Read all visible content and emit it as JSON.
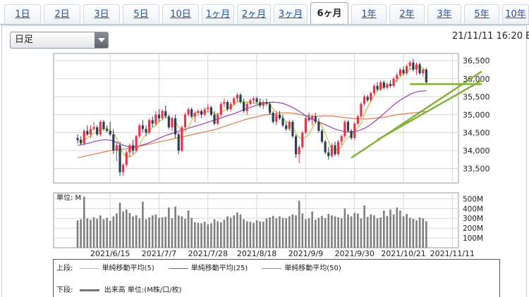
{
  "tabs": [
    {
      "label": "1日"
    },
    {
      "label": "2日"
    },
    {
      "label": "3日"
    },
    {
      "label": "5日"
    },
    {
      "label": "10日"
    },
    {
      "label": "1ヶ月"
    },
    {
      "label": "2ヶ月"
    },
    {
      "label": "3ヶ月"
    },
    {
      "label": "6ヶ月"
    },
    {
      "label": "1年"
    },
    {
      "label": "2年"
    },
    {
      "label": "3年"
    },
    {
      "label": "5年"
    },
    {
      "label": "10年"
    }
  ],
  "active_tab_index": 8,
  "select": {
    "value": "日足"
  },
  "timestamp": "21/11/11 16:20 E",
  "colors": {
    "up": "#e8334a",
    "down": "#2c3e50",
    "ma5": "#c6c33a",
    "ma25": "#9b3fb5",
    "ma50": "#e07a4a",
    "trend": "#84b13a",
    "volume": "#7f7f7f"
  },
  "chart_data": {
    "type": "candlestick",
    "price_axis": {
      "ticks": [
        33500,
        34000,
        34500,
        35000,
        35500,
        36000,
        36500
      ],
      "ylim": [
        33100,
        36700
      ]
    },
    "volume_axis": {
      "unit_label": "単位: M",
      "ticks": [
        "100M",
        "200M",
        "300M",
        "400M",
        "500M"
      ],
      "tick_values": [
        100,
        200,
        300,
        400,
        500
      ],
      "ylim": [
        0,
        560
      ]
    },
    "x_labels": [
      "2021/6/15",
      "2021/7/7",
      "2021/7/28",
      "2021/8/18",
      "2021/9/9",
      "2021/9/30",
      "2021/10/21",
      "2021/11/11"
    ],
    "x_label_indices": [
      10,
      25,
      40,
      55,
      70,
      85,
      100,
      115
    ],
    "ohlc": [
      [
        34350,
        34450,
        34200,
        34300
      ],
      [
        34300,
        34400,
        34150,
        34200
      ],
      [
        34200,
        34600,
        34150,
        34550
      ],
      [
        34550,
        34700,
        34400,
        34450
      ],
      [
        34450,
        34700,
        34350,
        34600
      ],
      [
        34600,
        34800,
        34550,
        34650
      ],
      [
        34650,
        34700,
        34400,
        34450
      ],
      [
        34450,
        34850,
        34400,
        34800
      ],
      [
        34800,
        34850,
        34550,
        34600
      ],
      [
        34600,
        34700,
        34500,
        34550
      ],
      [
        34550,
        34800,
        34400,
        34450
      ],
      [
        34450,
        34600,
        33900,
        34000
      ],
      [
        34000,
        34250,
        33700,
        34150
      ],
      [
        34150,
        34250,
        33300,
        33400
      ],
      [
        33400,
        33650,
        33300,
        33600
      ],
      [
        33600,
        34000,
        33550,
        33950
      ],
      [
        33950,
        34200,
        33800,
        34150
      ],
      [
        34150,
        34300,
        33900,
        34000
      ],
      [
        34000,
        34450,
        33950,
        34400
      ],
      [
        34400,
        34750,
        34350,
        34700
      ],
      [
        34700,
        34850,
        34500,
        34600
      ],
      [
        34600,
        34700,
        34400,
        34500
      ],
      [
        34500,
        34900,
        34450,
        34850
      ],
      [
        34850,
        34950,
        34650,
        34750
      ],
      [
        34750,
        35100,
        34700,
        35000
      ],
      [
        35000,
        35150,
        34800,
        34900
      ],
      [
        34900,
        35150,
        34850,
        35100
      ],
      [
        35100,
        35250,
        34900,
        34950
      ],
      [
        34950,
        35000,
        34600,
        34650
      ],
      [
        34650,
        34950,
        34550,
        34900
      ],
      [
        34900,
        35000,
        34350,
        34450
      ],
      [
        34450,
        34500,
        33900,
        34000
      ],
      [
        34000,
        34700,
        33950,
        34650
      ],
      [
        34650,
        35050,
        34600,
        35000
      ],
      [
        35000,
        35200,
        34950,
        35150
      ],
      [
        35150,
        35200,
        34900,
        34950
      ],
      [
        34950,
        35100,
        34800,
        35050
      ],
      [
        35050,
        35150,
        34950,
        35100
      ],
      [
        35100,
        35150,
        34900,
        35000
      ],
      [
        35000,
        35200,
        34950,
        35150
      ],
      [
        35150,
        35300,
        35050,
        35200
      ],
      [
        35200,
        35250,
        34950,
        35000
      ],
      [
        35000,
        35100,
        34700,
        34750
      ],
      [
        34750,
        35050,
        34700,
        35000
      ],
      [
        35000,
        35350,
        34950,
        35300
      ],
      [
        35300,
        35450,
        35200,
        35350
      ],
      [
        35350,
        35400,
        35100,
        35150
      ],
      [
        35150,
        35350,
        35100,
        35300
      ],
      [
        35300,
        35500,
        35250,
        35450
      ],
      [
        35450,
        35600,
        35350,
        35550
      ],
      [
        35550,
        35600,
        35300,
        35350
      ],
      [
        35350,
        35450,
        35050,
        35100
      ],
      [
        35100,
        35350,
        35000,
        35300
      ],
      [
        35300,
        35450,
        35250,
        35400
      ],
      [
        35400,
        35500,
        35300,
        35450
      ],
      [
        35450,
        35500,
        35300,
        35350
      ],
      [
        35350,
        35450,
        35200,
        35250
      ],
      [
        35250,
        35400,
        35150,
        35350
      ],
      [
        35350,
        35450,
        35250,
        35300
      ],
      [
        35300,
        35350,
        35000,
        35050
      ],
      [
        35050,
        35100,
        34750,
        34800
      ],
      [
        34800,
        35100,
        34700,
        35000
      ],
      [
        35000,
        35100,
        34850,
        34900
      ],
      [
        34900,
        35000,
        34650,
        34700
      ],
      [
        34700,
        34800,
        34550,
        34600
      ],
      [
        34600,
        34850,
        34550,
        34800
      ],
      [
        34800,
        34850,
        34350,
        34400
      ],
      [
        34400,
        34450,
        33800,
        33900
      ],
      [
        33900,
        34150,
        33650,
        34100
      ],
      [
        34100,
        34550,
        34050,
        34500
      ],
      [
        34500,
        34950,
        34450,
        34900
      ],
      [
        34900,
        35050,
        34800,
        34850
      ],
      [
        34850,
        35000,
        34700,
        34950
      ],
      [
        34950,
        35050,
        34750,
        34800
      ],
      [
        34800,
        34900,
        34500,
        34550
      ],
      [
        34550,
        34600,
        34200,
        34250
      ],
      [
        34250,
        34300,
        33900,
        33950
      ],
      [
        33950,
        34100,
        33750,
        33850
      ],
      [
        33850,
        34200,
        33800,
        34150
      ],
      [
        34150,
        34250,
        33850,
        33900
      ],
      [
        33900,
        34300,
        33850,
        34250
      ],
      [
        34250,
        34450,
        34150,
        34400
      ],
      [
        34400,
        34850,
        34350,
        34800
      ],
      [
        34800,
        34850,
        34500,
        34550
      ],
      [
        34550,
        34600,
        34300,
        34350
      ],
      [
        34350,
        34800,
        34300,
        34750
      ],
      [
        34750,
        35000,
        34700,
        34950
      ],
      [
        34950,
        35350,
        34900,
        35300
      ],
      [
        35300,
        35550,
        35250,
        35500
      ],
      [
        35500,
        35550,
        35350,
        35400
      ],
      [
        35400,
        35650,
        35350,
        35600
      ],
      [
        35600,
        35850,
        35550,
        35800
      ],
      [
        35800,
        35900,
        35650,
        35700
      ],
      [
        35700,
        35950,
        35650,
        35900
      ],
      [
        35900,
        35950,
        35700,
        35750
      ],
      [
        35750,
        35900,
        35700,
        35850
      ],
      [
        35850,
        35950,
        35750,
        35800
      ],
      [
        35800,
        36050,
        35750,
        36000
      ],
      [
        36000,
        36150,
        35900,
        36100
      ],
      [
        36100,
        36300,
        36050,
        36250
      ],
      [
        36250,
        36350,
        36100,
        36150
      ],
      [
        36150,
        36400,
        36100,
        36350
      ],
      [
        36350,
        36500,
        36250,
        36450
      ],
      [
        36450,
        36550,
        36200,
        36250
      ],
      [
        36250,
        36450,
        36100,
        36400
      ],
      [
        36400,
        36450,
        36100,
        36150
      ],
      [
        36150,
        36300,
        36050,
        36250
      ],
      [
        36250,
        36300,
        35850,
        35900
      ]
    ],
    "volume": [
      280,
      290,
      520,
      300,
      285,
      310,
      295,
      330,
      290,
      305,
      275,
      320,
      350,
      460,
      370,
      390,
      355,
      320,
      330,
      300,
      470,
      290,
      310,
      330,
      340,
      305,
      310,
      315,
      410,
      300,
      420,
      330,
      320,
      295,
      380,
      305,
      260,
      255,
      250,
      265,
      240,
      250,
      290,
      270,
      260,
      285,
      320,
      305,
      330,
      360,
      340,
      290,
      270,
      265,
      255,
      280,
      270,
      265,
      300,
      310,
      325,
      300,
      320,
      305,
      300,
      320,
      340,
      330,
      480,
      350,
      290,
      300,
      370,
      285,
      305,
      325,
      300,
      345,
      330,
      320,
      310,
      300,
      400,
      340,
      320,
      355,
      350,
      300,
      430,
      315,
      340,
      330,
      300,
      310,
      380,
      325,
      390,
      340,
      410,
      380,
      320,
      345,
      305,
      295,
      280,
      310,
      300,
      270
    ],
    "ma5": [
      34300,
      34250,
      34300,
      34350,
      34420,
      34490,
      34540,
      34590,
      34620,
      34610,
      34570,
      34480,
      34350,
      34120,
      33910,
      33830,
      33840,
      33860,
      33980,
      34140,
      34350,
      34440,
      34560,
      34640,
      34700,
      34800,
      34860,
      34920,
      34900,
      34860,
      34800,
      34660,
      34530,
      34540,
      34640,
      34840,
      35030,
      35080,
      35050,
      35050,
      35100,
      35100,
      35020,
      35020,
      35050,
      35120,
      35160,
      35200,
      35270,
      35360,
      35370,
      35350,
      35350,
      35340,
      35320,
      35290,
      35330,
      35340,
      35330,
      35300,
      35150,
      35080,
      35010,
      34890,
      34820,
      34780,
      34700,
      34480,
      34360,
      34340,
      34370,
      34460,
      34620,
      34800,
      34820,
      34680,
      34480,
      34260,
      34030,
      34020,
      34030,
      34110,
      34270,
      34370,
      34430,
      34540,
      34640,
      34750,
      35020,
      35200,
      35390,
      35530,
      35660,
      35740,
      35760,
      35800,
      35810,
      35870,
      35960,
      36050,
      36120,
      36190,
      36270,
      36290,
      36330,
      36330,
      36290,
      36220
    ],
    "ma25": [
      34150,
      34160,
      34180,
      34200,
      34220,
      34250,
      34270,
      34290,
      34300,
      34300,
      34290,
      34260,
      34230,
      34190,
      34150,
      34120,
      34110,
      34100,
      34110,
      34130,
      34160,
      34190,
      34220,
      34260,
      34300,
      34340,
      34380,
      34420,
      34450,
      34480,
      34510,
      34540,
      34560,
      34590,
      34620,
      34650,
      34680,
      34700,
      34730,
      34760,
      34790,
      34820,
      34850,
      34880,
      34910,
      34940,
      34970,
      35000,
      35030,
      35060,
      35100,
      35140,
      35170,
      35200,
      35230,
      35260,
      35290,
      35310,
      35330,
      35340,
      35350,
      35340,
      35330,
      35310,
      35280,
      35240,
      35200,
      35150,
      35090,
      35030,
      34970,
      34920,
      34870,
      34830,
      34790,
      34760,
      34720,
      34680,
      34640,
      34600,
      34570,
      34550,
      34530,
      34520,
      34520,
      34530,
      34550,
      34580,
      34620,
      34670,
      34730,
      34800,
      34870,
      34950,
      35030,
      35110,
      35190,
      35270,
      35340,
      35400,
      35460,
      35510,
      35560,
      35600,
      35630,
      35650,
      35660,
      35670
    ],
    "ma50": [
      33800,
      33820,
      33840,
      33860,
      33880,
      33900,
      33920,
      33940,
      33960,
      33980,
      34000,
      34010,
      34020,
      34030,
      34040,
      34050,
      34060,
      34080,
      34100,
      34120,
      34140,
      34160,
      34180,
      34200,
      34220,
      34240,
      34260,
      34280,
      34300,
      34320,
      34340,
      34360,
      34380,
      34400,
      34420,
      34440,
      34460,
      34480,
      34500,
      34520,
      34540,
      34560,
      34580,
      34610,
      34640,
      34670,
      34700,
      34730,
      34760,
      34790,
      34820,
      34850,
      34880,
      34900,
      34920,
      34940,
      34960,
      34980,
      35000,
      35010,
      35020,
      35030,
      35040,
      35050,
      35050,
      35050,
      35040,
      35030,
      35010,
      34990,
      34970,
      34960,
      34950,
      34950,
      34950,
      34960,
      34960,
      34960,
      34960,
      34950,
      34940,
      34930,
      34920,
      34910,
      34900,
      34890,
      34880,
      34880,
      34880,
      34880,
      34890,
      34900,
      34910,
      34920,
      34930,
      34940,
      34960,
      34980,
      35000,
      35010,
      35020,
      35030,
      35040,
      35050,
      35060,
      35070,
      35080,
      35090
    ],
    "trendlines": [
      {
        "from_index": 84,
        "from_value": 33800,
        "to_index": 124,
        "to_value": 36200
      },
      {
        "from_index": 92,
        "from_value": 34300,
        "to_index": 124,
        "to_value": 35950
      },
      {
        "from_index": 102,
        "from_value": 35850,
        "to_index": 124,
        "to_value": 35850
      }
    ],
    "legend": {
      "upper_label": "上段:",
      "lower_label": "下段:",
      "entries": [
        {
          "name": "単純移動平均(5)",
          "color_key": "ma5"
        },
        {
          "name": "単純移動平均(25)",
          "color_key": "ma25"
        },
        {
          "name": "単純移動平均(50)",
          "color_key": "ma50"
        }
      ],
      "volume_entry": "出来高 単位:(M株/口/枚)"
    }
  }
}
